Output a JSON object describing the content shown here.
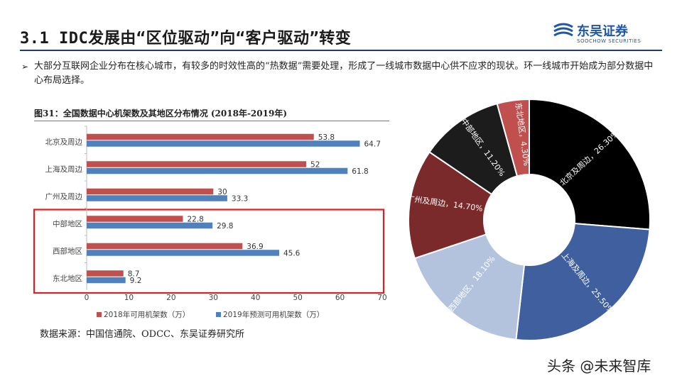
{
  "header": {
    "title": "3.1 IDC发展由“区位驱动”向“客户驱动”转变",
    "logo_cn": "东吴证券",
    "logo_en": "SOOCHOW SECURITIES"
  },
  "bullet": {
    "text": "大部分互联网企业分布在核心城市，有较多的时效性高的“热数据”需要处理，形成了一线城市数据中心供不应求的现状。环一线城市开始成为部分数据中心布局选择。"
  },
  "figure": {
    "caption": "图31：全国数据中心机架数及其地区分布情况 (2018年-2019年)"
  },
  "source": "数据来源：中国信通院、ODCC、东吴证券研究所",
  "watermark": "头条 @未来智库",
  "colors": {
    "series_2018": "#c0504d",
    "series_2019": "#4f81bd",
    "highlight": "#e02020",
    "title_rule": "#1f3b7a"
  },
  "chart_data": [
    {
      "type": "bar",
      "orientation": "horizontal",
      "categories": [
        "北京及周边",
        "上海及周边",
        "广州及周边",
        "中部地区",
        "西部地区",
        "东北地区"
      ],
      "series": [
        {
          "name": "2018年可用机架数（万）",
          "values": [
            53.8,
            52,
            30,
            22.8,
            36.9,
            8.7
          ],
          "color": "#c0504d",
          "labels": [
            "53.8",
            "52",
            "30",
            "22.8",
            "36.9",
            "8.7"
          ]
        },
        {
          "name": "2019年预测可用机架数（万）",
          "values": [
            64.7,
            61.8,
            33.3,
            29.8,
            45.6,
            9.2
          ],
          "color": "#4f81bd",
          "labels": [
            "64.7",
            "61.8",
            "33.3",
            "29.8",
            "45.6",
            "9.2"
          ]
        }
      ],
      "xlim": [
        0,
        70
      ],
      "xticks": [
        "0",
        "10",
        "20",
        "30",
        "40",
        "50",
        "60",
        "70"
      ],
      "grid": false,
      "legend": "bottom",
      "highlight_categories": [
        "中部地区",
        "西部地区",
        "东北地区"
      ]
    },
    {
      "type": "pie",
      "style": "donut",
      "slices": [
        {
          "label": "北京及周边，26.30%",
          "value": 26.3,
          "color": "#000000"
        },
        {
          "label": "上海及周边，25.50%",
          "value": 25.5,
          "color": "#3f5f9f"
        },
        {
          "label": "西部地区，18.10%",
          "value": 18.1,
          "color": "#b4c3dd"
        },
        {
          "label": "广州及周边，14.70%",
          "value": 14.7,
          "color": "#7a2a2a"
        },
        {
          "label": "中部地区，11.20%",
          "value": 11.2,
          "color": "#1c1c1c"
        },
        {
          "label": "东北地区，4.30%",
          "value": 4.3,
          "color": "#c0504d"
        }
      ],
      "legend": "none"
    }
  ]
}
